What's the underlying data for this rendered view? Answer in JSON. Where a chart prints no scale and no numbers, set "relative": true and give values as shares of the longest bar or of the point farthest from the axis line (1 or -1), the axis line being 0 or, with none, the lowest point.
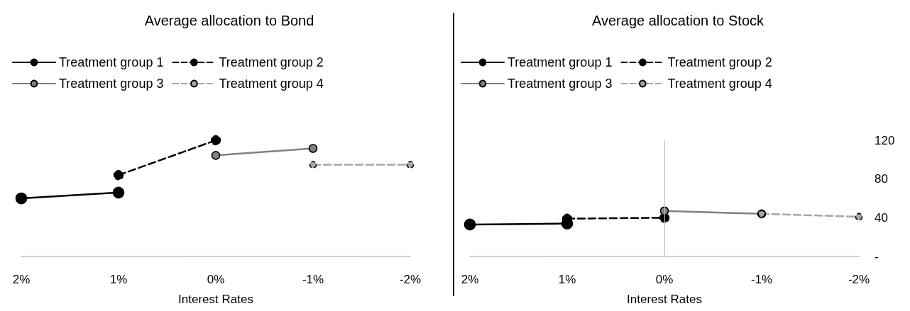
{
  "chart_data": [
    {
      "type": "line",
      "title": "Average allocation to Bond",
      "xlabel": "Interest Rates",
      "categories": [
        "2%",
        "1%",
        "0%",
        "-1%",
        "-2%"
      ],
      "relative": true,
      "tick_labels": "x",
      "legend": "top",
      "marker": "circle",
      "grid": false,
      "series": [
        {
          "name": "Treatment group 1",
          "color": "#000000",
          "line_style": "solid",
          "values": [
            0.5,
            0.55,
            null,
            null,
            null
          ]
        },
        {
          "name": "Treatment group 2",
          "color": "#000000",
          "line_style": "dashed",
          "values": [
            null,
            0.7,
            1,
            null,
            null
          ]
        },
        {
          "name": "Treatment group 3",
          "color": "#808080",
          "line_style": "solid",
          "values": [
            null,
            null,
            0.87,
            0.93,
            null
          ]
        },
        {
          "name": "Treatment group 4",
          "color": "#a6a6a6",
          "line_style": "dashed",
          "values": [
            null,
            null,
            null,
            0.79,
            0.79
          ]
        }
      ]
    },
    {
      "type": "line",
      "title": "Average allocation to Stock",
      "xlabel": "Interest Rates",
      "categories": [
        "2%",
        "1%",
        "0%",
        "-1%",
        "-2%"
      ],
      "ylim": [
        0,
        120
      ],
      "yticks": [
        {
          "value": 0,
          "label": "-"
        },
        40,
        80,
        120
      ],
      "legend": "top",
      "marker": "circle",
      "grid": false,
      "ref_lines": [
        {
          "axis": "x",
          "value": "0%",
          "color": "#bfbfbf"
        }
      ],
      "series": [
        {
          "name": "Treatment group 1",
          "color": "#000000",
          "line_style": "solid",
          "values": [
            33,
            34,
            null,
            null,
            null
          ]
        },
        {
          "name": "Treatment group 2",
          "color": "#000000",
          "line_style": "dashed",
          "values": [
            null,
            39,
            40,
            null,
            null
          ]
        },
        {
          "name": "Treatment group 3",
          "color": "#808080",
          "line_style": "solid",
          "values": [
            null,
            null,
            47,
            44,
            null
          ]
        },
        {
          "name": "Treatment group 4",
          "color": "#a6a6a6",
          "line_style": "dashed",
          "values": [
            null,
            null,
            null,
            44,
            41
          ]
        }
      ]
    }
  ]
}
